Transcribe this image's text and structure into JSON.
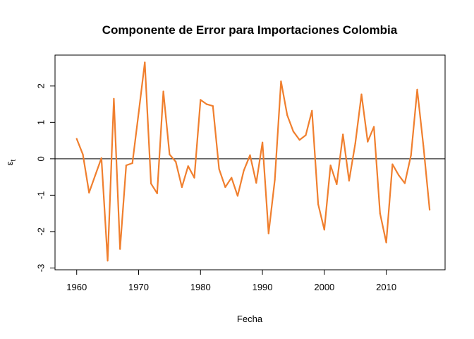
{
  "chart_data": {
    "type": "line",
    "title": "Componente de Error para Importaciones Colombia",
    "xlabel": "Fecha",
    "ylabel": "ε",
    "ylabel_sub": "t",
    "xlim": [
      1956.5,
      2019.5
    ],
    "ylim": [
      -3.05,
      2.85
    ],
    "x_ticks": [
      1960,
      1970,
      1980,
      1990,
      2000,
      2010
    ],
    "y_ticks": [
      -3,
      -2,
      -1,
      0,
      1,
      2
    ],
    "hline": 0,
    "grid": false,
    "legend": "none",
    "series": [
      {
        "color": "#f07f2e",
        "x": [
          1960,
          1961,
          1962,
          1963,
          1964,
          1965,
          1966,
          1967,
          1968,
          1969,
          1970,
          1971,
          1972,
          1973,
          1974,
          1975,
          1976,
          1977,
          1978,
          1979,
          1980,
          1981,
          1982,
          1983,
          1984,
          1985,
          1986,
          1987,
          1988,
          1989,
          1990,
          1991,
          1992,
          1993,
          1994,
          1995,
          1996,
          1997,
          1998,
          1999,
          2000,
          2001,
          2002,
          2003,
          2004,
          2005,
          2006,
          2007,
          2008,
          2009,
          2010,
          2011,
          2012,
          2013,
          2014,
          2015,
          2016,
          2017
        ],
        "values": [
          0.55,
          0.12,
          -0.93,
          -0.45,
          0.02,
          -2.8,
          1.65,
          -2.48,
          -0.18,
          -0.12,
          1.25,
          2.65,
          -0.68,
          -0.95,
          1.85,
          0.12,
          -0.08,
          -0.78,
          -0.2,
          -0.52,
          1.62,
          1.5,
          1.45,
          -0.28,
          -0.78,
          -0.52,
          -1.02,
          -0.32,
          0.1,
          -0.66,
          0.45,
          -2.05,
          -0.58,
          2.13,
          1.2,
          0.75,
          0.52,
          0.65,
          1.32,
          -1.25,
          -1.95,
          -0.18,
          -0.7,
          0.67,
          -0.6,
          0.42,
          1.77,
          0.47,
          0.88,
          -1.5,
          -2.3,
          -0.15,
          -0.45,
          -0.67,
          0.1,
          1.9,
          0.35,
          -1.4
        ]
      }
    ]
  }
}
